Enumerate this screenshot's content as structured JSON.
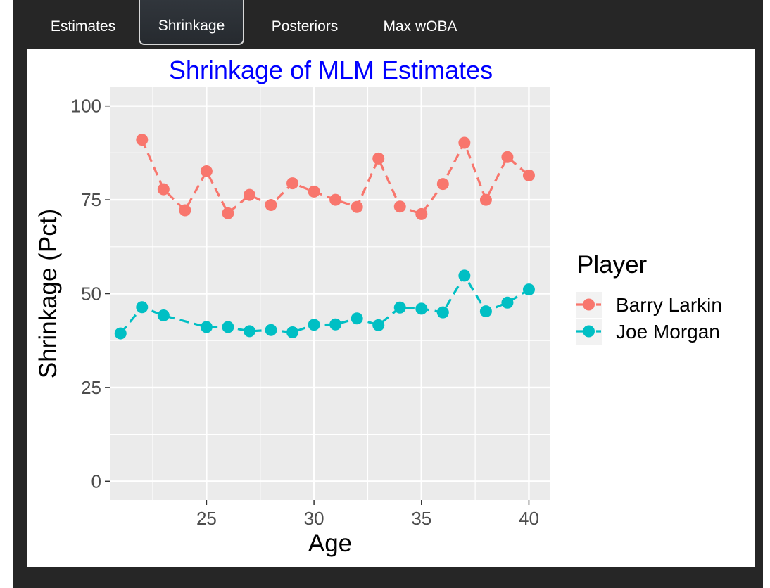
{
  "tabs": [
    {
      "label": "Estimates",
      "active": false
    },
    {
      "label": "Shrinkage",
      "active": true
    },
    {
      "label": "Posteriors",
      "active": false
    },
    {
      "label": "Max wOBA",
      "active": false
    }
  ],
  "colors": {
    "panel_background": "#ebebeb",
    "grid": "#ffffff",
    "title": "#0000ff",
    "series_barry_larkin": "#f8766d",
    "series_joe_morgan": "#00bfc4"
  },
  "chart_data": {
    "type": "line",
    "title": "Shrinkage of MLM Estimates",
    "xlabel": "Age",
    "ylabel": "Shrinkage (Pct)",
    "xlim": [
      20.5,
      41
    ],
    "ylim": [
      -5,
      105
    ],
    "xticks": [
      25,
      30,
      35,
      40
    ],
    "yticks": [
      0,
      25,
      50,
      75,
      100
    ],
    "grid": true,
    "line_style": "dashed",
    "markers": true,
    "legend": {
      "title": "Player",
      "position": "right"
    },
    "series": [
      {
        "name": "Barry Larkin",
        "color": "#f8766d",
        "x": [
          22,
          23,
          24,
          25,
          26,
          27,
          28,
          29,
          30,
          31,
          32,
          33,
          34,
          35,
          36,
          37,
          38,
          39,
          40
        ],
        "values": [
          91,
          77.8,
          72.2,
          82.6,
          71.4,
          76.3,
          73.6,
          79.4,
          77.2,
          75,
          73.1,
          86,
          73.2,
          71.2,
          79.2,
          90.2,
          75,
          86.4,
          81.5
        ]
      },
      {
        "name": "Joe Morgan",
        "color": "#00bfc4",
        "x": [
          21,
          22,
          23,
          25,
          26,
          27,
          28,
          29,
          30,
          31,
          32,
          33,
          34,
          35,
          36,
          37,
          38,
          39,
          40
        ],
        "values": [
          39.4,
          46.4,
          44.2,
          41.1,
          41.1,
          40,
          40.3,
          39.7,
          41.7,
          41.8,
          43.4,
          41.6,
          46.3,
          46,
          45,
          54.8,
          45.3,
          47.6,
          51.1
        ]
      }
    ]
  }
}
